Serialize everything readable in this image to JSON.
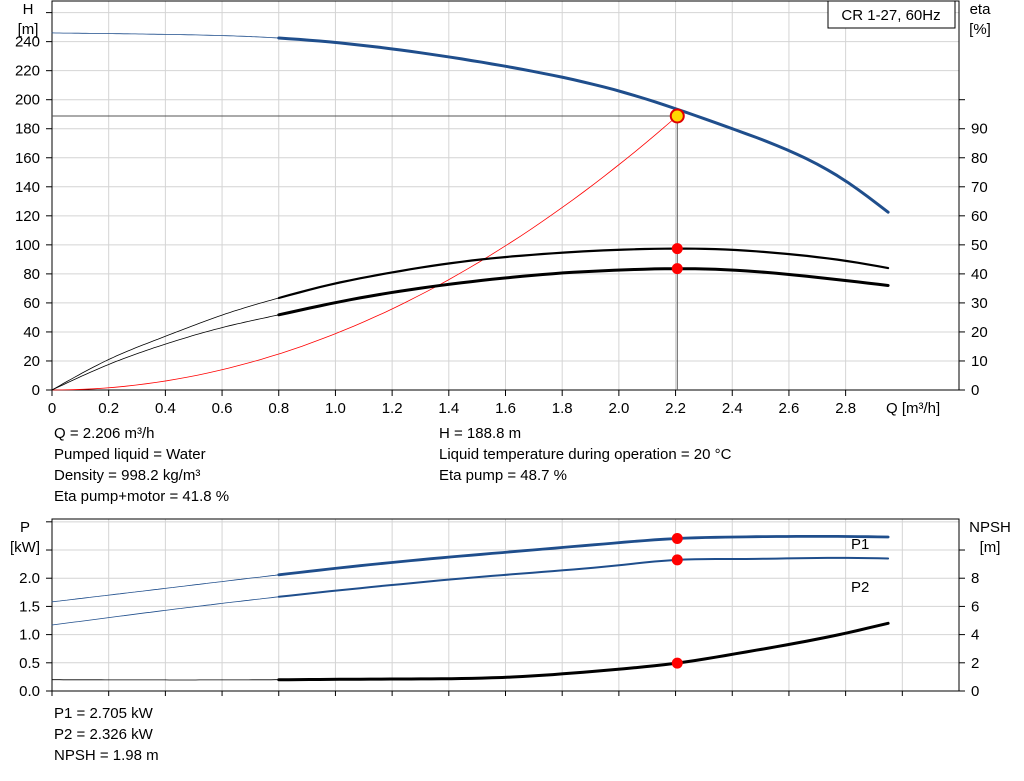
{
  "chart_data": [
    {
      "type": "line",
      "title": "CR 1-27, 60Hz",
      "xlabel": "Q [m³/h]",
      "ylabel_left": {
        "name": "H",
        "unit": "[m]"
      },
      "ylabel_right": {
        "name": "eta",
        "unit": "[%]"
      },
      "xlim": [
        0,
        3.2
      ],
      "ylim_left": [
        0,
        268
      ],
      "ylim_right": [
        0,
        134
      ],
      "x_ticks": [
        "0",
        "0.2",
        "0.4",
        "0.6",
        "0.8",
        "1.0",
        "1.2",
        "1.4",
        "1.6",
        "1.8",
        "2.0",
        "2.2",
        "2.4",
        "2.6",
        "2.8"
      ],
      "y_ticks_left": [
        "0",
        "20",
        "40",
        "60",
        "80",
        "100",
        "120",
        "140",
        "160",
        "180",
        "200",
        "220",
        "240"
      ],
      "y_ticks_right": [
        "0",
        "10",
        "20",
        "30",
        "40",
        "50",
        "60",
        "70",
        "80",
        "90"
      ],
      "grid": true,
      "series": [
        {
          "axis": "left",
          "color": "#1f4e8c",
          "x": [
            0,
            0.4,
            0.8,
            1.2,
            1.6,
            2.0,
            2.4,
            2.8,
            2.95
          ],
          "y": [
            246,
            245,
            242.5,
            235,
            223,
            206,
            180,
            144,
            122.5
          ]
        },
        {
          "axis": "right",
          "color": "#000000",
          "x": [
            0,
            0.2,
            0.4,
            0.6,
            0.8,
            1.0,
            1.2,
            1.4,
            1.6,
            1.8,
            2.0,
            2.206,
            2.4,
            2.6,
            2.8,
            2.95
          ],
          "y": [
            0,
            10.5,
            18.5,
            25.8,
            31.7,
            36.7,
            40.5,
            43.6,
            45.8,
            47.3,
            48.3,
            48.7,
            48.3,
            46.8,
            44.5,
            42
          ]
        },
        {
          "axis": "right",
          "color": "#000000",
          "x": [
            0,
            0.2,
            0.4,
            0.6,
            0.8,
            1.0,
            1.2,
            1.4,
            1.6,
            1.8,
            2.0,
            2.206,
            2.4,
            2.6,
            2.8,
            2.95
          ],
          "y": [
            0,
            8.8,
            15.8,
            21.5,
            25.9,
            30.1,
            33.6,
            36.4,
            38.6,
            40.3,
            41.3,
            41.8,
            41.3,
            39.8,
            37.7,
            36
          ]
        },
        {
          "axis": "left",
          "color": "#ff0000",
          "x": [
            0,
            0.4,
            0.8,
            1.2,
            1.6,
            2.0,
            2.206
          ],
          "y": [
            0,
            6.2,
            24.8,
            55.8,
            99.2,
            155,
            188.8
          ]
        }
      ],
      "duty_point": {
        "Q": 2.206,
        "H": 188.8,
        "eta_pump": 48.7,
        "eta_pump_motor": 41.8
      }
    },
    {
      "type": "line",
      "xlim": [
        0,
        3.2
      ],
      "ylabel_left": {
        "name": "P",
        "unit": "[kW]"
      },
      "ylabel_right": {
        "name": "NPSH",
        "unit": "[m]"
      },
      "ylim_left": [
        0,
        3.05
      ],
      "ylim_right": [
        0,
        12.2
      ],
      "y_ticks_left": [
        "0.0",
        "0.5",
        "1.0",
        "1.5",
        "2.0"
      ],
      "y_ticks_right": [
        "0",
        "2",
        "4",
        "6",
        "8"
      ],
      "grid": true,
      "series": [
        {
          "name": "P1",
          "axis": "left",
          "color": "#1f4e8c",
          "x": [
            0,
            0.4,
            0.8,
            1.2,
            1.6,
            2.0,
            2.206,
            2.4,
            2.8,
            2.95
          ],
          "y": [
            1.58,
            1.82,
            2.06,
            2.28,
            2.46,
            2.63,
            2.705,
            2.73,
            2.74,
            2.73
          ]
        },
        {
          "name": "P2",
          "axis": "left",
          "color": "#1f4e8c",
          "x": [
            0,
            0.4,
            0.8,
            1.2,
            1.6,
            2.0,
            2.206,
            2.4,
            2.8,
            2.95
          ],
          "y": [
            1.17,
            1.43,
            1.67,
            1.88,
            2.06,
            2.23,
            2.326,
            2.34,
            2.36,
            2.35
          ]
        },
        {
          "axis": "right",
          "color": "#000000",
          "x": [
            0,
            0.8,
            1.2,
            1.6,
            2.0,
            2.206,
            2.4,
            2.8,
            2.95
          ],
          "y": [
            0.8,
            0.8,
            0.85,
            0.97,
            1.55,
            1.98,
            2.6,
            4.1,
            4.8
          ]
        }
      ]
    }
  ],
  "info_top": {
    "q": "Q = 2.206 m³/h",
    "liquid": "Pumped liquid = Water",
    "density": "Density = 998.2 kg/m³",
    "eta_pm": "Eta pump+motor = 41.8 %",
    "h": "H = 188.8 m",
    "temp": "Liquid temperature during operation = 20 °C",
    "eta_p": "Eta pump = 48.7 %"
  },
  "info_bottom": {
    "p1": "P1 = 2.705 kW",
    "p2": "P2 = 2.326 kW",
    "npsh": "NPSH = 1.98 m"
  },
  "colors": {
    "blue": "#1f4e8c",
    "red": "#ff0000",
    "grid": "#d4d4d4",
    "marker_fill": "#ffd700"
  }
}
